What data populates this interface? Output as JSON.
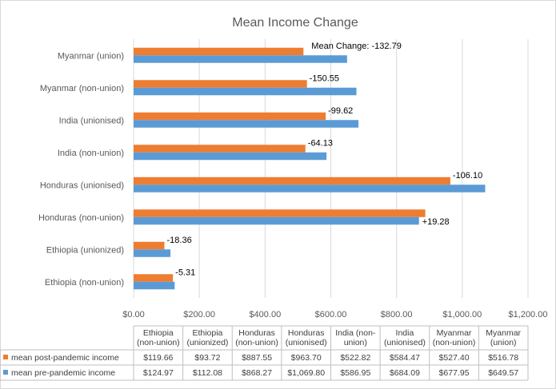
{
  "chart_data": {
    "type": "bar",
    "orientation": "horizontal",
    "title": "Mean Income Change",
    "categories": [
      "Ethiopia (non-union)",
      "Ethiopia (unionized)",
      "Honduras (non-union)",
      "Honduras (unionised)",
      "India (non-union)",
      "India (unionised)",
      "Myanmar (non-union)",
      "Myanmar (union)"
    ],
    "table_headers": [
      [
        "Ethiopia",
        "(non-union)"
      ],
      [
        "Ethiopia",
        "(unionized)"
      ],
      [
        "Honduras",
        "(non-union)"
      ],
      [
        "Honduras",
        "(unionised)"
      ],
      [
        "India (non-",
        "union)"
      ],
      [
        "India",
        "(unionised)"
      ],
      [
        "Myanmar",
        "(non-union)"
      ],
      [
        "Myanmar",
        "(union)"
      ]
    ],
    "series": [
      {
        "name": "mean post-pandemic income",
        "color": "#ed7d31",
        "values": [
          119.66,
          93.72,
          887.55,
          963.7,
          522.82,
          584.47,
          527.4,
          516.78
        ],
        "table_values": [
          "$119.66",
          "$93.72",
          "$887.55",
          "$963.70",
          "$522.82",
          "$584.47",
          "$527.40",
          "$516.78"
        ]
      },
      {
        "name": "mean pre-pandemic income",
        "color": "#5b9bd5",
        "values": [
          124.97,
          112.08,
          868.27,
          1069.8,
          586.95,
          684.09,
          677.95,
          649.57
        ],
        "table_values": [
          "$124.97",
          "$112.08",
          "$868.27",
          "$1,069.80",
          "$586.95",
          "$684.09",
          "$677.95",
          "$649.57"
        ]
      }
    ],
    "data_labels": [
      "-5.31",
      "-18.36",
      "+19.28",
      "-106.10",
      "-64.13",
      "-99.62",
      "-150.55",
      "Mean Change: -132.79"
    ],
    "x_ticks": [
      "$0.00",
      "$200.00",
      "$400.00",
      "$600.00",
      "$800.00",
      "$1,000.00",
      "$1,200.00"
    ],
    "xlim": [
      0,
      1200
    ],
    "grid": true,
    "legend": "data-table"
  }
}
